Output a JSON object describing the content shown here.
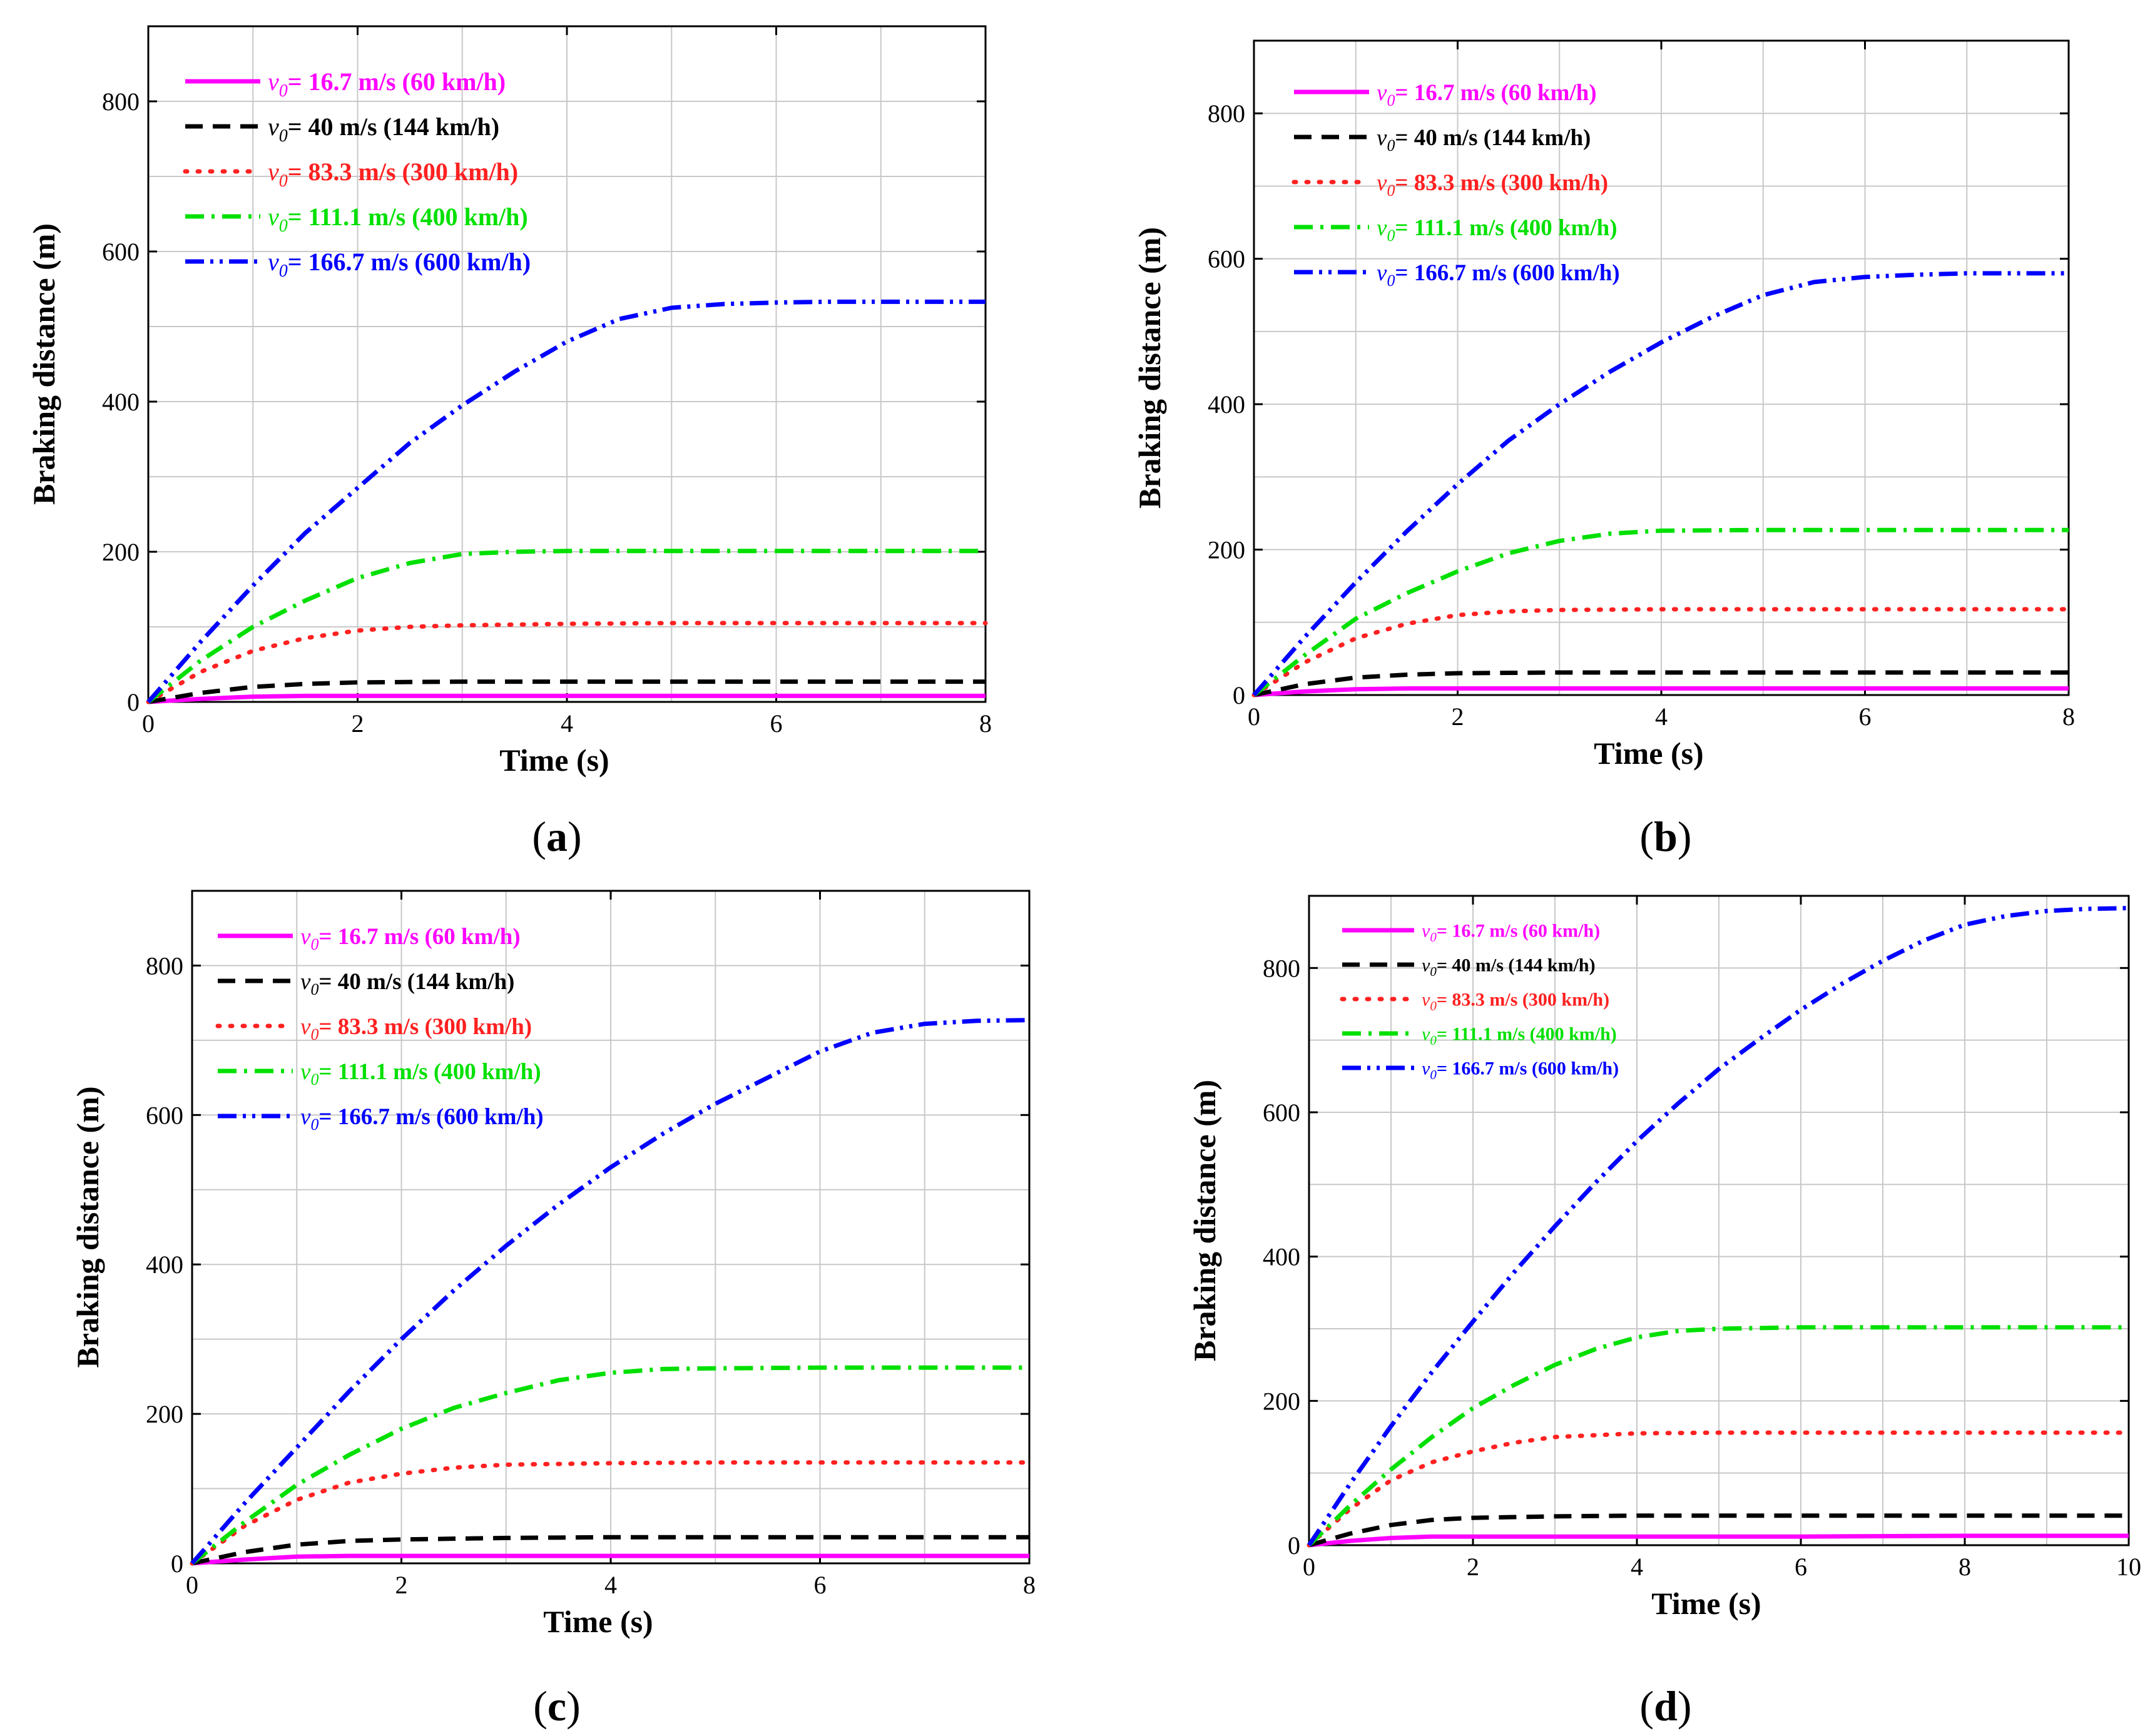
{
  "chart_data": [
    {
      "type": "line",
      "panel_label": "(a)",
      "xlabel": "Time (s)",
      "ylabel": "Braking distance (m)",
      "xlim": [
        0,
        8
      ],
      "ylim": [
        0,
        900
      ],
      "xticks": [
        0,
        2,
        4,
        6,
        8
      ],
      "yticks": [
        0,
        200,
        400,
        600,
        800
      ],
      "grid": true,
      "legend_position": "top-left",
      "series": [
        {
          "name": "v0= 16.7 m/s (60 km/h)",
          "subscript": "0",
          "prefix": "v",
          "suffix": "= 16.7 m/s (60 km/h)",
          "color": "#ff00ff",
          "style": "solid",
          "x": [
            0,
            0.5,
            1,
            1.5,
            2,
            3,
            4,
            6,
            8
          ],
          "y": [
            0,
            4,
            7,
            8,
            8,
            8,
            8,
            8,
            8
          ]
        },
        {
          "name": "v0= 40 m/s (144 km/h)",
          "subscript": "0",
          "prefix": "v",
          "suffix": "= 40 m/s (144 km/h)",
          "color": "#000000",
          "style": "dash",
          "x": [
            0,
            0.5,
            1,
            1.5,
            2,
            3,
            4,
            6,
            8
          ],
          "y": [
            0,
            12,
            20,
            24,
            26,
            27,
            27,
            27,
            27
          ]
        },
        {
          "name": "v0= 83.3 m/s (300 km/h)",
          "subscript": "0",
          "prefix": "v",
          "suffix": "= 83.3 m/s (300 km/h)",
          "color": "#ff2020",
          "style": "dot",
          "x": [
            0,
            0.5,
            1,
            1.5,
            2,
            2.5,
            3,
            4,
            5,
            6,
            7,
            8
          ],
          "y": [
            0,
            40,
            68,
            85,
            95,
            100,
            102,
            104,
            105,
            105,
            105,
            105
          ]
        },
        {
          "name": "v0= 111.1 m/s (400 km/h)",
          "subscript": "0",
          "prefix": "v",
          "suffix": "= 111.1 m/s (400 km/h)",
          "color": "#00e000",
          "style": "dashdot",
          "x": [
            0,
            0.5,
            1,
            1.5,
            2,
            2.5,
            3,
            3.5,
            4,
            5,
            6,
            7,
            8
          ],
          "y": [
            0,
            55,
            100,
            135,
            165,
            185,
            197,
            200,
            201,
            201,
            201,
            201,
            201
          ]
        },
        {
          "name": "v0= 166.7 m/s (600 km/h)",
          "subscript": "0",
          "prefix": "v",
          "suffix": "= 166.7 m/s (600 km/h)",
          "color": "#0000ff",
          "style": "dashdotdot",
          "x": [
            0,
            0.5,
            1,
            1.5,
            2,
            2.5,
            3,
            3.5,
            4,
            4.5,
            5,
            5.5,
            6,
            6.5,
            7,
            8
          ],
          "y": [
            0,
            80,
            155,
            225,
            285,
            345,
            395,
            440,
            480,
            510,
            525,
            530,
            532,
            533,
            533,
            533
          ]
        }
      ]
    },
    {
      "type": "line",
      "panel_label": "(b)",
      "xlabel": "Time (s)",
      "ylabel": "Braking distance (m)",
      "xlim": [
        0,
        8
      ],
      "ylim": [
        0,
        900
      ],
      "xticks": [
        0,
        2,
        4,
        6,
        8
      ],
      "yticks": [
        0,
        200,
        400,
        600,
        800
      ],
      "grid": true,
      "legend_position": "top-left",
      "series": [
        {
          "name": "v0= 16.7 m/s (60 km/h)",
          "subscript": "0",
          "prefix": "v",
          "suffix": "= 16.7 m/s (60 km/h)",
          "color": "#ff00ff",
          "style": "solid",
          "x": [
            0,
            0.5,
            1,
            1.5,
            2,
            3,
            4,
            6,
            8
          ],
          "y": [
            0,
            5,
            8,
            9,
            9,
            9,
            9,
            9,
            9
          ]
        },
        {
          "name": "v0= 40 m/s (144 km/h)",
          "subscript": "0",
          "prefix": "v",
          "suffix": "= 40 m/s (144 km/h)",
          "color": "#000000",
          "style": "dash",
          "x": [
            0,
            0.5,
            1,
            1.5,
            2,
            3,
            4,
            6,
            8
          ],
          "y": [
            0,
            15,
            24,
            28,
            30,
            31,
            31,
            31,
            31
          ]
        },
        {
          "name": "v0= 83.3 m/s (300 km/h)",
          "subscript": "0",
          "prefix": "v",
          "suffix": "= 83.3 m/s (300 km/h)",
          "color": "#ff2020",
          "style": "dot",
          "x": [
            0,
            0.5,
            1,
            1.5,
            2,
            2.5,
            3,
            4,
            5,
            6,
            7,
            8
          ],
          "y": [
            0,
            45,
            78,
            98,
            110,
            115,
            117,
            118,
            118,
            118,
            118,
            118
          ]
        },
        {
          "name": "v0= 111.1 m/s (400 km/h)",
          "subscript": "0",
          "prefix": "v",
          "suffix": "= 111.1 m/s (400 km/h)",
          "color": "#00e000",
          "style": "dashdot",
          "x": [
            0,
            0.5,
            1,
            1.5,
            2,
            2.5,
            3,
            3.5,
            4,
            5,
            6,
            7,
            8
          ],
          "y": [
            0,
            55,
            105,
            140,
            170,
            195,
            212,
            222,
            226,
            227,
            227,
            227,
            227
          ]
        },
        {
          "name": "v0= 166.7 m/s (600 km/h)",
          "subscript": "0",
          "prefix": "v",
          "suffix": "= 166.7 m/s (600 km/h)",
          "color": "#0000ff",
          "style": "dashdotdot",
          "x": [
            0,
            0.5,
            1,
            1.5,
            2,
            2.5,
            3,
            3.5,
            4,
            4.5,
            5,
            5.5,
            6,
            6.5,
            7,
            8
          ],
          "y": [
            0,
            80,
            155,
            225,
            290,
            350,
            400,
            445,
            485,
            520,
            550,
            568,
            575,
            578,
            580,
            580
          ]
        }
      ]
    },
    {
      "type": "line",
      "panel_label": "(c)",
      "xlabel": "Time (s)",
      "ylabel": "Braking distance (m)",
      "xlim": [
        0,
        8
      ],
      "ylim": [
        0,
        900
      ],
      "xticks": [
        0,
        2,
        4,
        6,
        8
      ],
      "yticks": [
        0,
        200,
        400,
        600,
        800
      ],
      "grid": true,
      "legend_position": "top-left",
      "series": [
        {
          "name": "v0= 16.7 m/s (60 km/h)",
          "subscript": "0",
          "prefix": "v",
          "suffix": "= 16.7 m/s (60 km/h)",
          "color": "#ff00ff",
          "style": "solid",
          "x": [
            0,
            0.5,
            1,
            1.5,
            2,
            3,
            4,
            6,
            8
          ],
          "y": [
            0,
            5,
            9,
            10,
            10,
            10,
            10,
            10,
            10
          ]
        },
        {
          "name": "v0= 40 m/s (144 km/h)",
          "subscript": "0",
          "prefix": "v",
          "suffix": "= 40 m/s (144 km/h)",
          "color": "#000000",
          "style": "dash",
          "x": [
            0,
            0.5,
            1,
            1.5,
            2,
            3,
            4,
            6,
            8
          ],
          "y": [
            0,
            15,
            25,
            30,
            32,
            34,
            35,
            35,
            35
          ]
        },
        {
          "name": "v0= 83.3 m/s (300 km/h)",
          "subscript": "0",
          "prefix": "v",
          "suffix": "= 83.3 m/s (300 km/h)",
          "color": "#ff2020",
          "style": "dot",
          "x": [
            0,
            0.5,
            1,
            1.5,
            2,
            2.5,
            3,
            4,
            5,
            6,
            7,
            8
          ],
          "y": [
            0,
            50,
            85,
            108,
            120,
            128,
            132,
            134,
            135,
            135,
            135,
            135
          ]
        },
        {
          "name": "v0= 111.1 m/s (400 km/h)",
          "subscript": "0",
          "prefix": "v",
          "suffix": "= 111.1 m/s (400 km/h)",
          "color": "#00e000",
          "style": "dashdot",
          "x": [
            0,
            0.5,
            1,
            1.5,
            2,
            2.5,
            3,
            3.5,
            4,
            4.5,
            5,
            6,
            7,
            8
          ],
          "y": [
            0,
            55,
            105,
            145,
            180,
            208,
            228,
            245,
            255,
            260,
            261,
            262,
            262,
            262
          ]
        },
        {
          "name": "v0= 166.7 m/s (600 km/h)",
          "subscript": "0",
          "prefix": "v",
          "suffix": "= 166.7 m/s (600 km/h)",
          "color": "#0000ff",
          "style": "dashdotdot",
          "x": [
            0,
            0.5,
            1,
            1.5,
            2,
            2.5,
            3,
            3.5,
            4,
            4.5,
            5,
            5.5,
            6,
            6.5,
            7,
            7.5,
            8
          ],
          "y": [
            0,
            80,
            155,
            230,
            300,
            365,
            425,
            480,
            530,
            575,
            615,
            650,
            685,
            710,
            722,
            726,
            727
          ]
        }
      ]
    },
    {
      "type": "line",
      "panel_label": "(d)",
      "xlabel": "Time (s)",
      "ylabel": "Braking distance (m)",
      "xlim": [
        0,
        10
      ],
      "ylim": [
        0,
        900
      ],
      "xticks": [
        0,
        2,
        4,
        6,
        8,
        10
      ],
      "yticks": [
        0,
        200,
        400,
        600,
        800
      ],
      "grid": true,
      "legend_position": "top-left",
      "series": [
        {
          "name": "v0= 16.7 m/s (60 km/h)",
          "subscript": "0",
          "prefix": "v",
          "suffix": "= 16.7 m/s (60 km/h)",
          "color": "#ff00ff",
          "style": "solid",
          "x": [
            0,
            0.5,
            1,
            1.5,
            2,
            3,
            4,
            6,
            8,
            10
          ],
          "y": [
            0,
            6,
            10,
            12,
            12,
            12,
            12,
            12,
            13,
            13
          ]
        },
        {
          "name": "v0= 40 m/s (144 km/h)",
          "subscript": "0",
          "prefix": "v",
          "suffix": "= 40 m/s (144 km/h)",
          "color": "#000000",
          "style": "dash",
          "x": [
            0,
            0.5,
            1,
            1.5,
            2,
            3,
            4,
            6,
            8,
            10
          ],
          "y": [
            0,
            16,
            28,
            35,
            38,
            40,
            41,
            41,
            41,
            41
          ]
        },
        {
          "name": "v0= 83.3 m/s (300 km/h)",
          "subscript": "0",
          "prefix": "v",
          "suffix": "= 83.3 m/s (300 km/h)",
          "color": "#ff2020",
          "style": "dot",
          "x": [
            0,
            0.5,
            1,
            1.5,
            2,
            2.5,
            3,
            4,
            5,
            6,
            8,
            10
          ],
          "y": [
            0,
            50,
            90,
            115,
            130,
            142,
            150,
            155,
            156,
            156,
            156,
            156
          ]
        },
        {
          "name": "v0= 111.1 m/s (400 km/h)",
          "subscript": "0",
          "prefix": "v",
          "suffix": "= 111.1 m/s (400 km/h)",
          "color": "#00e000",
          "style": "dashdot",
          "x": [
            0,
            0.5,
            1,
            1.5,
            2,
            2.5,
            3,
            3.5,
            4,
            4.5,
            5,
            6,
            7,
            8,
            10
          ],
          "y": [
            0,
            55,
            105,
            150,
            190,
            222,
            250,
            272,
            288,
            297,
            300,
            302,
            302,
            302,
            302
          ]
        },
        {
          "name": "v0= 166.7 m/s (600 km/h)",
          "subscript": "0",
          "prefix": "v",
          "suffix": "= 166.7 m/s (600 km/h)",
          "color": "#0000ff",
          "style": "dashdotdot",
          "x": [
            0,
            0.5,
            1,
            1.5,
            2,
            2.5,
            3,
            3.5,
            4,
            4.5,
            5,
            5.5,
            6,
            6.5,
            7,
            7.5,
            8,
            8.5,
            9,
            9.5,
            10
          ],
          "y": [
            0,
            85,
            165,
            240,
            310,
            378,
            442,
            503,
            560,
            612,
            660,
            702,
            742,
            778,
            810,
            838,
            860,
            872,
            879,
            882,
            883
          ]
        }
      ]
    }
  ]
}
